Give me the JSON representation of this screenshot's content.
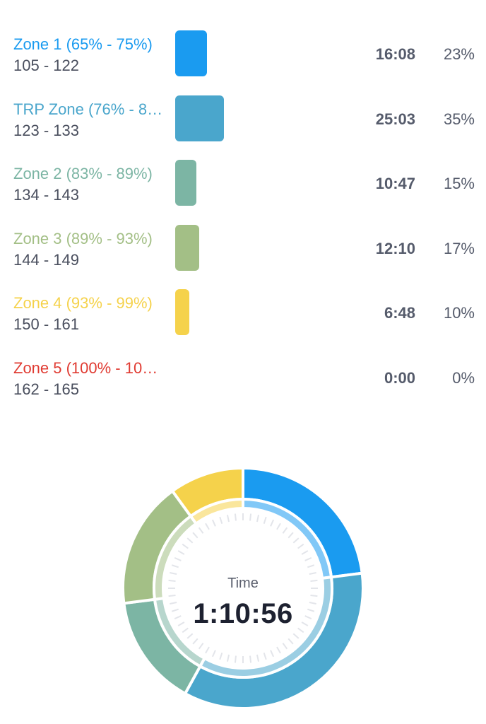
{
  "zones": [
    {
      "name": "Zone 1 (65% - 75%)",
      "range": "105 - 122",
      "time": "16:08",
      "percent": "23%",
      "share": 0.23,
      "color": "#1a9bf0"
    },
    {
      "name": "TRP Zone (76% - 8…",
      "range": "123 - 133",
      "time": "25:03",
      "percent": "35%",
      "share": 0.35,
      "color": "#4aa6cc"
    },
    {
      "name": "Zone 2 (83% - 89%)",
      "range": "134 - 143",
      "time": "10:47",
      "percent": "15%",
      "share": 0.15,
      "color": "#7cb5a4"
    },
    {
      "name": "Zone 3 (89% - 93%)",
      "range": "144 - 149",
      "time": "12:10",
      "percent": "17%",
      "share": 0.17,
      "color": "#a3bf86"
    },
    {
      "name": "Zone 4 (93% - 99%)",
      "range": "150 - 161",
      "time": "6:48",
      "percent": "10%",
      "share": 0.1,
      "color": "#f5d24b"
    },
    {
      "name": "Zone 5 (100% - 10…",
      "range": "162 - 165",
      "time": "0:00",
      "percent": "0%",
      "share": 0.0,
      "color": "#e03b32"
    }
  ],
  "summary": {
    "label": "Time",
    "total": "1:10:56"
  }
}
